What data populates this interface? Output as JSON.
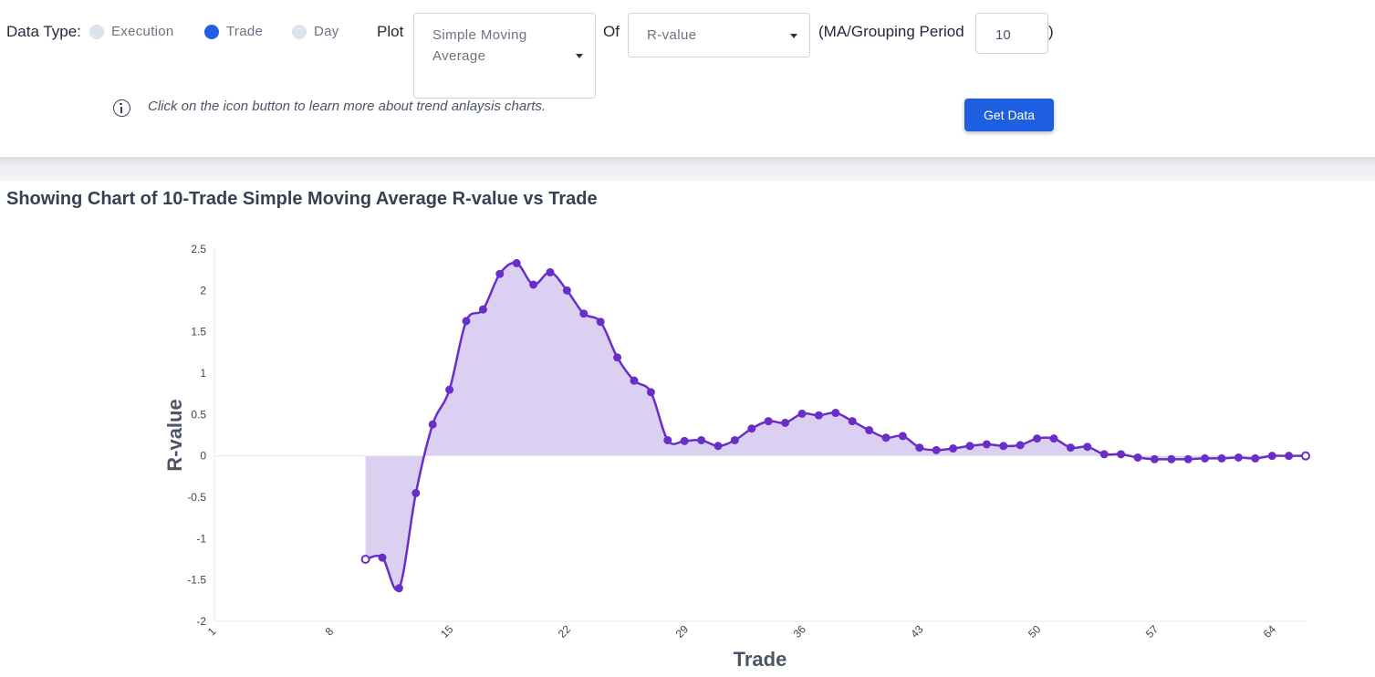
{
  "controls": {
    "data_type_label": "Data Type:",
    "radios": [
      {
        "label": "Execution",
        "selected": false
      },
      {
        "label": "Trade",
        "selected": true
      },
      {
        "label": "Day",
        "selected": false
      }
    ],
    "plot_label": "Plot",
    "plot_select": {
      "line1": "Simple Moving",
      "line2": "Average"
    },
    "of_label": "Of",
    "of_select": "R-value",
    "period_label": "(MA/Grouping Period",
    "period_value": "10",
    "period_close": ")",
    "hint": "Click on the icon button to learn more about trend anlaysis charts.",
    "get_data_label": "Get Data"
  },
  "chart_title": "Showing Chart of 10-Trade Simple Moving Average R-value vs Trade",
  "colors": {
    "accent": "#1d5fe0",
    "line": "#6a2ec8",
    "fill": "#dcd0f2"
  },
  "chart_data": {
    "type": "area",
    "xlabel": "Trade",
    "ylabel": "R-value",
    "xlim": [
      1,
      66
    ],
    "ylim": [
      -2,
      2.5
    ],
    "x_ticks": [
      "1",
      "8",
      "15",
      "22",
      "29",
      "36",
      "43",
      "50",
      "57",
      "64"
    ],
    "y_ticks": [
      "2.5",
      "2",
      "1.5",
      "1",
      "0.5",
      "0",
      "-0.5",
      "-1",
      "-1.5",
      "-2"
    ],
    "grid": false,
    "series": [
      {
        "x": [
          10,
          11,
          12,
          13,
          14,
          15,
          16,
          17,
          18,
          19,
          20,
          21,
          22,
          23,
          24,
          25,
          26,
          27,
          28,
          29,
          30,
          31,
          32,
          33,
          34,
          35,
          36,
          37,
          38,
          39,
          40,
          41,
          42,
          43,
          44,
          45,
          46,
          47,
          48,
          49,
          50,
          51,
          52,
          53,
          54,
          55,
          56,
          57,
          58,
          59,
          60,
          61,
          62,
          63,
          64,
          65,
          66
        ],
        "y": [
          -1.25,
          -1.23,
          -1.6,
          -0.45,
          0.38,
          0.8,
          1.63,
          1.77,
          2.2,
          2.33,
          2.07,
          2.22,
          2.0,
          1.72,
          1.62,
          1.19,
          0.91,
          0.77,
          0.19,
          0.18,
          0.19,
          0.12,
          0.19,
          0.33,
          0.42,
          0.4,
          0.51,
          0.49,
          0.52,
          0.42,
          0.31,
          0.22,
          0.24,
          0.1,
          0.07,
          0.09,
          0.12,
          0.14,
          0.12,
          0.13,
          0.21,
          0.21,
          0.1,
          0.11,
          0.02,
          0.02,
          -0.02,
          -0.04,
          -0.04,
          -0.04,
          -0.03,
          -0.03,
          -0.02,
          -0.03,
          0.0,
          0.0,
          0.0
        ]
      }
    ]
  }
}
